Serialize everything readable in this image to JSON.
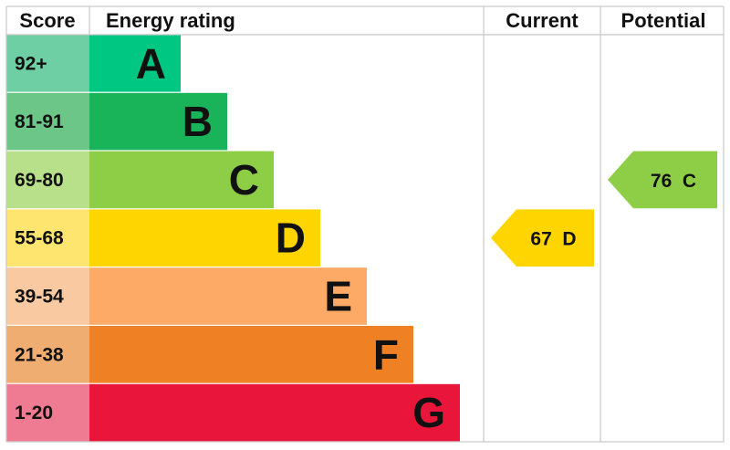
{
  "chart_data": {
    "type": "table",
    "headers": {
      "score": "Score",
      "rating": "Energy rating",
      "current": "Current",
      "potential": "Potential"
    },
    "bands": [
      {
        "letter": "A",
        "range": "92+",
        "color": "#00c781",
        "score_color": "#6dcfa3"
      },
      {
        "letter": "B",
        "range": "81-91",
        "color": "#19b459",
        "score_color": "#6cc688"
      },
      {
        "letter": "C",
        "range": "69-80",
        "color": "#8dce46",
        "score_color": "#b8df8a"
      },
      {
        "letter": "D",
        "range": "55-68",
        "color": "#ffd500",
        "score_color": "#fde56f"
      },
      {
        "letter": "E",
        "range": "39-54",
        "color": "#fcaa65",
        "score_color": "#f9c9a2"
      },
      {
        "letter": "F",
        "range": "21-38",
        "color": "#ef8023",
        "score_color": "#f0ad72"
      },
      {
        "letter": "G",
        "range": "1-20",
        "color": "#e9153b",
        "score_color": "#ee7b91"
      }
    ],
    "current": {
      "value": 67,
      "letter": "D",
      "label": "67  D",
      "color": "#ffd500"
    },
    "potential": {
      "value": 76,
      "letter": "C",
      "label": "76  C",
      "color": "#8dce46"
    }
  }
}
